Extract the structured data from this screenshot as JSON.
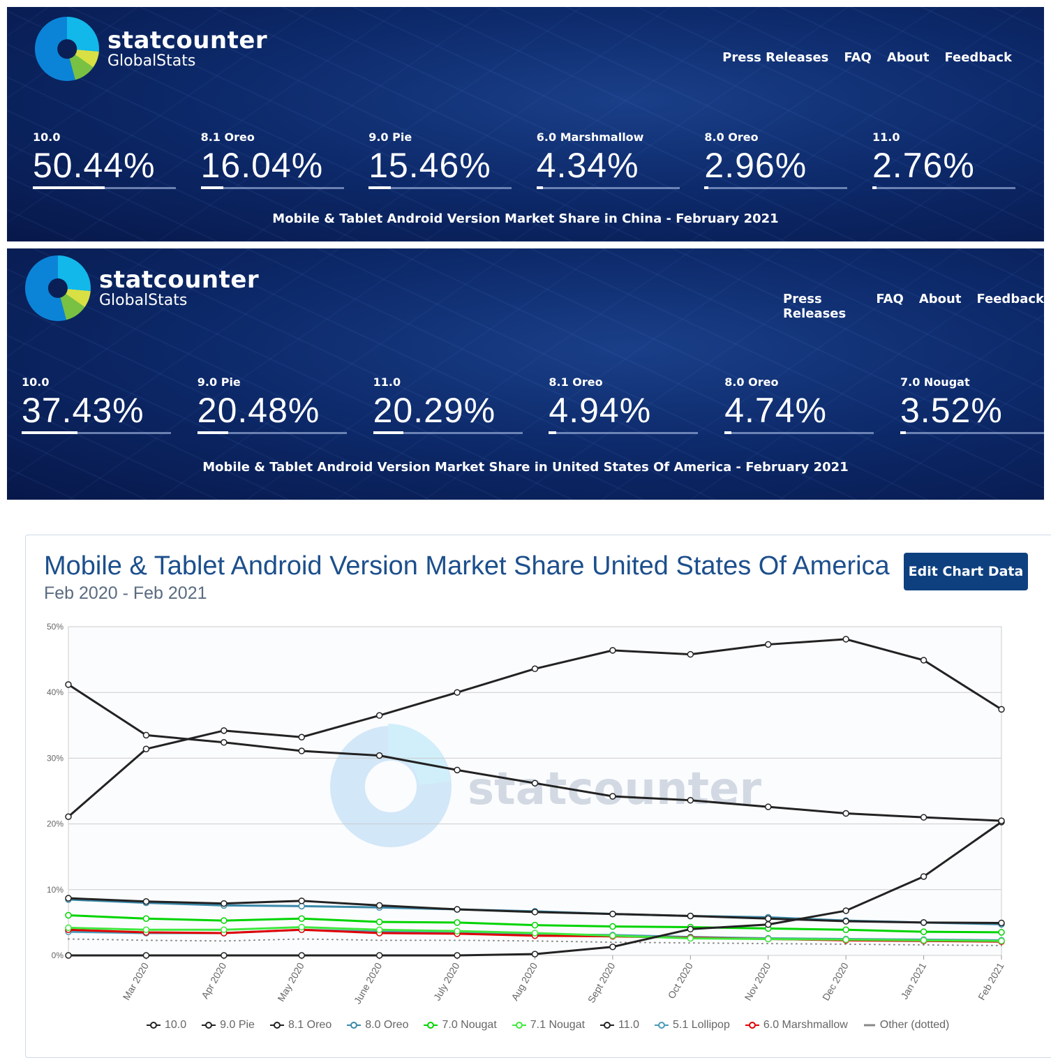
{
  "header": {
    "logo": {
      "name": "statcounter",
      "sub": "GlobalStats"
    },
    "nav": [
      "Press Releases",
      "FAQ",
      "About",
      "Feedback"
    ]
  },
  "china": {
    "stats": [
      {
        "label": "10.0",
        "value": "50.44%",
        "pct": 50.44
      },
      {
        "label": "8.1 Oreo",
        "value": "16.04%",
        "pct": 16.04
      },
      {
        "label": "9.0 Pie",
        "value": "15.46%",
        "pct": 15.46
      },
      {
        "label": "6.0 Marshmallow",
        "value": "4.34%",
        "pct": 4.34
      },
      {
        "label": "8.0 Oreo",
        "value": "2.96%",
        "pct": 2.96
      },
      {
        "label": "11.0",
        "value": "2.76%",
        "pct": 2.76
      }
    ],
    "caption": "Mobile & Tablet Android Version Market Share in China - February 2021"
  },
  "usa": {
    "stats": [
      {
        "label": "10.0",
        "value": "37.43%",
        "pct": 37.43
      },
      {
        "label": "9.0 Pie",
        "value": "20.48%",
        "pct": 20.48
      },
      {
        "label": "11.0",
        "value": "20.29%",
        "pct": 20.29
      },
      {
        "label": "8.1 Oreo",
        "value": "4.94%",
        "pct": 4.94
      },
      {
        "label": "8.0 Oreo",
        "value": "4.74%",
        "pct": 4.74
      },
      {
        "label": "7.0 Nougat",
        "value": "3.52%",
        "pct": 3.52
      }
    ],
    "caption": "Mobile & Tablet Android Version Market Share in United States Of America - February 2021"
  },
  "edit_button": "Edit Chart Data",
  "chart_data": {
    "type": "line",
    "title": "Mobile & Tablet Android Version Market Share United States Of America",
    "subtitle": "Feb 2020 - Feb 2021",
    "watermark": "statcounter",
    "ylim": [
      0,
      50
    ],
    "yticks": [
      "0%",
      "10%",
      "20%",
      "30%",
      "40%",
      "50%"
    ],
    "x": [
      "Feb 2020",
      "Mar 2020",
      "Apr 2020",
      "May 2020",
      "June 2020",
      "July 2020",
      "Aug 2020",
      "Sept 2020",
      "Oct 2020",
      "Nov 2020",
      "Dec 2020",
      "Jan 2021",
      "Feb 2021"
    ],
    "xlabels_shown": [
      "Mar 2020",
      "Apr 2020",
      "May 2020",
      "June 2020",
      "July 2020",
      "Aug 2020",
      "Sept 2020",
      "Oct 2020",
      "Nov 2020",
      "Dec 2020",
      "Jan 2021",
      "Feb 2021"
    ],
    "legend_position": "bottom",
    "series": [
      {
        "name": "10.0",
        "color": "#222222",
        "values": [
          21.1,
          31.4,
          34.2,
          33.2,
          36.5,
          40.0,
          43.6,
          46.4,
          45.8,
          47.3,
          48.1,
          44.9,
          37.43
        ]
      },
      {
        "name": "9.0 Pie",
        "color": "#222222",
        "values": [
          41.2,
          33.5,
          32.4,
          31.1,
          30.4,
          28.2,
          26.2,
          24.2,
          23.6,
          22.6,
          21.6,
          21.0,
          20.48
        ]
      },
      {
        "name": "8.1 Oreo",
        "color": "#222222",
        "values": [
          8.7,
          8.2,
          7.9,
          8.3,
          7.6,
          7.0,
          6.6,
          6.3,
          6.0,
          5.6,
          5.2,
          5.0,
          4.94
        ]
      },
      {
        "name": "8.0 Oreo",
        "color": "#3a88a8",
        "values": [
          8.5,
          8.0,
          7.6,
          7.5,
          7.3,
          7.0,
          6.7,
          6.3,
          6.0,
          5.8,
          5.3,
          5.0,
          4.74
        ]
      },
      {
        "name": "7.0 Nougat",
        "color": "#00d400",
        "values": [
          6.1,
          5.6,
          5.3,
          5.6,
          5.1,
          5.0,
          4.6,
          4.4,
          4.3,
          4.1,
          3.9,
          3.6,
          3.52
        ]
      },
      {
        "name": "7.1 Nougat",
        "color": "#3ee83e",
        "values": [
          4.2,
          3.9,
          3.9,
          4.3,
          3.9,
          3.7,
          3.4,
          3.0,
          2.6,
          2.5,
          2.4,
          2.3,
          2.2
        ]
      },
      {
        "name": "11.0",
        "color": "#222222",
        "values": [
          0,
          0,
          0,
          0,
          0,
          0,
          0.2,
          1.3,
          4.0,
          4.7,
          6.8,
          12.0,
          20.29
        ]
      },
      {
        "name": "5.1 Lollipop",
        "color": "#4a9ab8",
        "values": [
          3.6,
          3.4,
          3.4,
          3.9,
          3.6,
          3.4,
          3.2,
          3.1,
          2.8,
          2.6,
          2.5,
          2.4,
          2.3
        ]
      },
      {
        "name": "6.0 Marshmallow",
        "color": "#e00000",
        "values": [
          3.9,
          3.5,
          3.4,
          3.9,
          3.4,
          3.3,
          3.0,
          2.9,
          2.7,
          2.5,
          2.3,
          2.2,
          2.1
        ]
      },
      {
        "name": "Other (dotted)",
        "color": "#888888",
        "dotted": true,
        "values": [
          2.5,
          2.3,
          2.2,
          2.5,
          2.3,
          2.3,
          2.2,
          2.0,
          1.9,
          1.8,
          1.7,
          1.6,
          1.5
        ]
      }
    ]
  }
}
